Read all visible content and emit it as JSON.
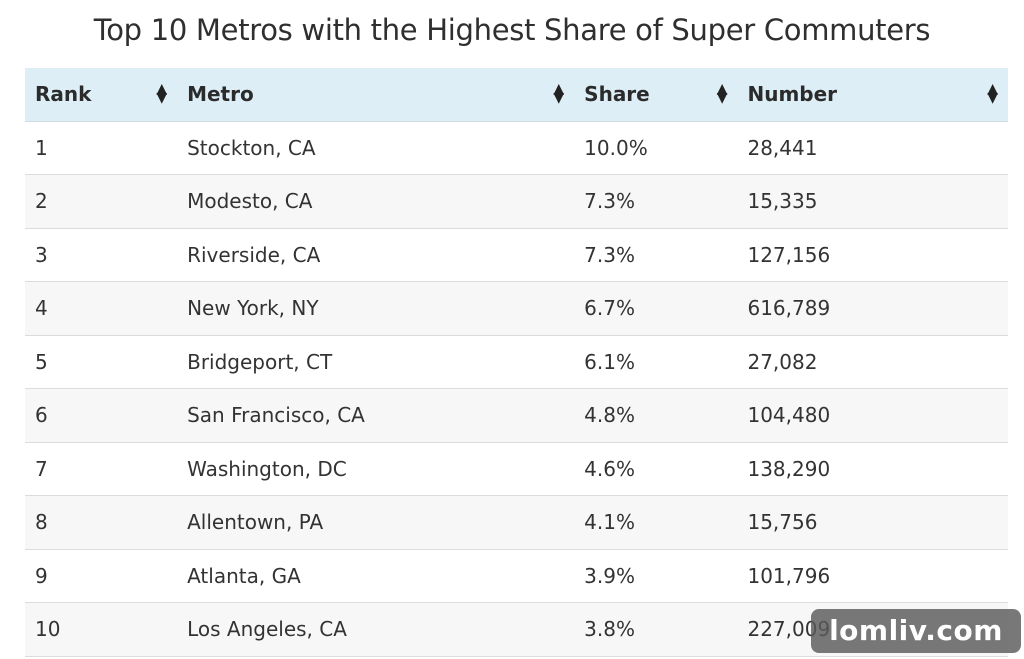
{
  "title": "Top 10 Metros with the Highest Share of Super Commuters",
  "table": {
    "headers": {
      "rank": "Rank",
      "metro": "Metro",
      "share": "Share",
      "number": "Number"
    },
    "sort_icon": "sort-up-down-icon",
    "rows": [
      {
        "rank": "1",
        "metro": "Stockton, CA",
        "share": "10.0%",
        "number": "28,441"
      },
      {
        "rank": "2",
        "metro": "Modesto, CA",
        "share": "7.3%",
        "number": "15,335"
      },
      {
        "rank": "3",
        "metro": "Riverside, CA",
        "share": "7.3%",
        "number": "127,156"
      },
      {
        "rank": "4",
        "metro": "New York, NY",
        "share": "6.7%",
        "number": "616,789"
      },
      {
        "rank": "5",
        "metro": "Bridgeport, CT",
        "share": "6.1%",
        "number": "27,082"
      },
      {
        "rank": "6",
        "metro": "San Francisco, CA",
        "share": "4.8%",
        "number": "104,480"
      },
      {
        "rank": "7",
        "metro": "Washington, DC",
        "share": "4.6%",
        "number": "138,290"
      },
      {
        "rank": "8",
        "metro": "Allentown, PA",
        "share": "4.1%",
        "number": "15,756"
      },
      {
        "rank": "9",
        "metro": "Atlanta, GA",
        "share": "3.9%",
        "number": "101,796"
      },
      {
        "rank": "10",
        "metro": "Los Angeles, CA",
        "share": "3.8%",
        "number": "227,009"
      }
    ]
  },
  "watermark": "lomliv.com",
  "colors": {
    "header_background": "#ddeef7",
    "stripe_background": "#f7f7f7"
  }
}
